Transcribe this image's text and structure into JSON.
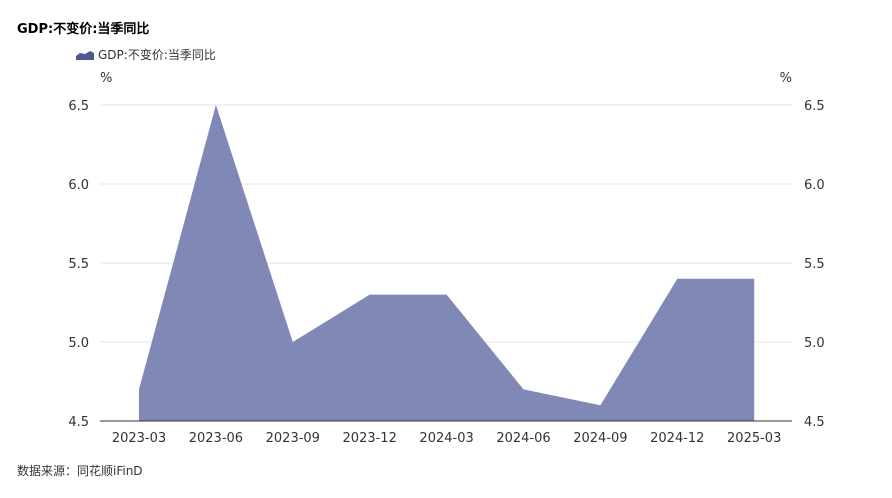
{
  "chart_title": "GDP:不变价:当季同比",
  "source": "数据来源：同花顺iFinD",
  "colors": {
    "area": "#8088b5",
    "legend": "#4b5a92",
    "grid": "#e6e6e6"
  },
  "chart_data": {
    "type": "area",
    "title": "GDP:不变价:当季同比",
    "y_unit_left": "%",
    "y_unit_right": "%",
    "categories": [
      "2023-03",
      "2023-06",
      "2023-09",
      "2023-12",
      "2024-03",
      "2024-06",
      "2024-09",
      "2024-12",
      "2025-03"
    ],
    "series": [
      {
        "name": "GDP:不变价:当季同比",
        "values": [
          4.7,
          6.5,
          5.0,
          5.3,
          5.3,
          4.7,
          4.6,
          5.4,
          5.4
        ]
      }
    ],
    "ylim": [
      4.5,
      6.5
    ],
    "yticks": [
      "4.5",
      "5.0",
      "5.5",
      "6.0",
      "6.5"
    ],
    "grid": true,
    "legend": "top-left"
  }
}
